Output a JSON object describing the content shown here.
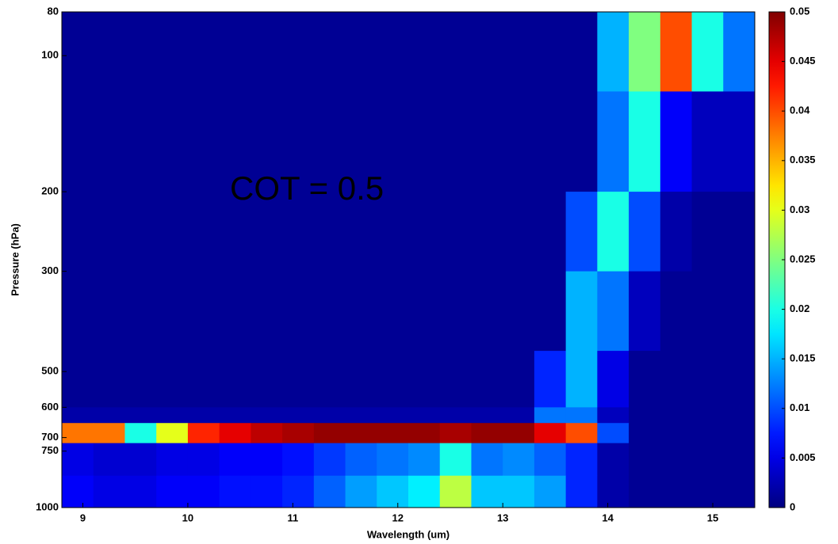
{
  "chart_data": {
    "type": "heatmap",
    "xlabel": "Wavelength (um)",
    "ylabel": "Pressure (hPa)",
    "annotation": "COT = 0.5",
    "annotation_color": "#e8246e",
    "colormap": "jet",
    "yscale": "log",
    "yreverse": true,
    "xlim": [
      8.8,
      15.4
    ],
    "xticks": [
      9,
      10,
      11,
      12,
      13,
      14,
      15
    ],
    "ylim": [
      80,
      1000
    ],
    "yticks": [
      80,
      100,
      200,
      300,
      500,
      600,
      700,
      750,
      1000
    ],
    "clim": [
      0,
      0.05
    ],
    "cticks": [
      0,
      0.005,
      0.01,
      0.015,
      0.02,
      0.025,
      0.03,
      0.035,
      0.04,
      0.045,
      0.05
    ],
    "x_bins": [
      8.8,
      9.1,
      9.4,
      9.7,
      10.0,
      10.3,
      10.6,
      10.9,
      11.2,
      11.5,
      11.8,
      12.1,
      12.4,
      12.7,
      13.0,
      13.3,
      13.6,
      13.9,
      14.2,
      14.5,
      14.8,
      15.1,
      15.4
    ],
    "y_bins": [
      80,
      120,
      200,
      300,
      450,
      600,
      650,
      720,
      850,
      1000
    ],
    "z": [
      [
        0.001,
        0.001,
        0.001,
        0.001,
        0.001,
        0.001,
        0.001,
        0.001,
        0.001,
        0.001,
        0.001,
        0.001,
        0.001,
        0.001,
        0.001,
        0.001,
        0.001,
        0.015,
        0.025,
        0.04,
        0.02,
        0.012
      ],
      [
        0.001,
        0.001,
        0.001,
        0.001,
        0.001,
        0.001,
        0.001,
        0.001,
        0.001,
        0.001,
        0.001,
        0.001,
        0.001,
        0.001,
        0.001,
        0.001,
        0.001,
        0.012,
        0.02,
        0.006,
        0.003,
        0.003
      ],
      [
        0.001,
        0.001,
        0.001,
        0.001,
        0.001,
        0.001,
        0.001,
        0.001,
        0.001,
        0.001,
        0.001,
        0.001,
        0.001,
        0.001,
        0.001,
        0.001,
        0.01,
        0.02,
        0.01,
        0.002,
        0.001,
        0.001
      ],
      [
        0.001,
        0.001,
        0.001,
        0.001,
        0.001,
        0.001,
        0.001,
        0.001,
        0.001,
        0.001,
        0.001,
        0.001,
        0.001,
        0.001,
        0.001,
        0.001,
        0.015,
        0.012,
        0.003,
        0.001,
        0.001,
        0.001
      ],
      [
        0.001,
        0.001,
        0.001,
        0.001,
        0.001,
        0.001,
        0.001,
        0.001,
        0.001,
        0.001,
        0.001,
        0.001,
        0.001,
        0.001,
        0.001,
        0.008,
        0.015,
        0.005,
        0.001,
        0.001,
        0.001,
        0.001
      ],
      [
        0.002,
        0.002,
        0.002,
        0.002,
        0.002,
        0.002,
        0.002,
        0.002,
        0.002,
        0.002,
        0.002,
        0.002,
        0.002,
        0.002,
        0.002,
        0.012,
        0.012,
        0.003,
        0.001,
        0.001,
        0.001,
        0.001
      ],
      [
        0.038,
        0.038,
        0.02,
        0.03,
        0.042,
        0.045,
        0.047,
        0.048,
        0.049,
        0.049,
        0.049,
        0.049,
        0.048,
        0.049,
        0.049,
        0.045,
        0.04,
        0.01,
        0.001,
        0.001,
        0.001,
        0.001
      ],
      [
        0.005,
        0.004,
        0.004,
        0.005,
        0.005,
        0.006,
        0.006,
        0.007,
        0.009,
        0.011,
        0.012,
        0.013,
        0.02,
        0.012,
        0.013,
        0.011,
        0.008,
        0.002,
        0.001,
        0.001,
        0.001,
        0.001
      ],
      [
        0.006,
        0.005,
        0.005,
        0.006,
        0.006,
        0.007,
        0.007,
        0.008,
        0.011,
        0.014,
        0.016,
        0.018,
        0.028,
        0.016,
        0.016,
        0.014,
        0.008,
        0.002,
        0.001,
        0.001,
        0.001,
        0.001
      ]
    ]
  }
}
